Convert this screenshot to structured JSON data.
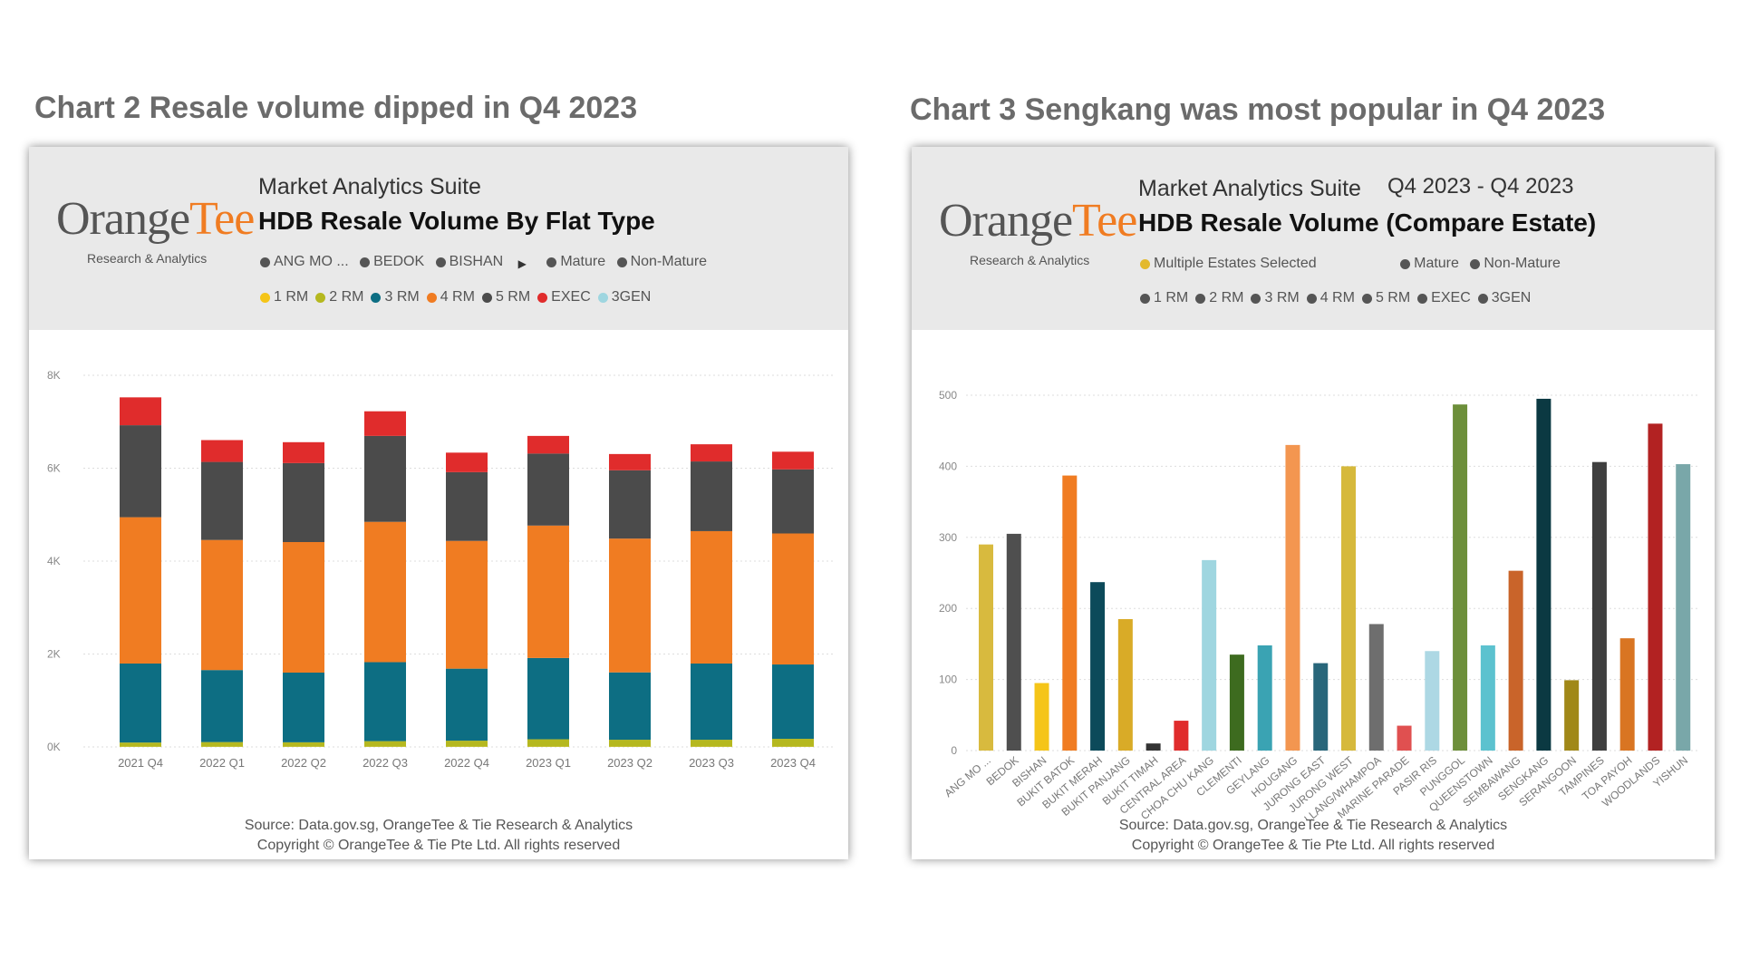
{
  "left": {
    "title": "Chart 2 Resale volume dipped in Q4 2023",
    "logo": {
      "main": "Orange",
      "accent": "Tee",
      "sub": "Research & Analytics"
    },
    "suite": "Market Analytics Suite",
    "heading": "HDB Resale Volume By Flat Type",
    "filters": [
      "ANG MO ...",
      "BEDOK",
      "BISHAN"
    ],
    "maturity": [
      "Mature",
      "Non-Mature"
    ],
    "footer": {
      "source": "Source: Data.gov.sg, OrangeTee & Tie Research & Analytics",
      "copyright": "Copyright © OrangeTee & Tie Pte Ltd. All rights reserved"
    }
  },
  "right": {
    "title": "Chart 3 Sengkang was most popular in Q4 2023",
    "logo": {
      "main": "Orange",
      "accent": "Tee",
      "sub": "Research & Analytics"
    },
    "suite": "Market Analytics Suite",
    "period": "Q4 2023 - Q4 2023",
    "heading": "HDB Resale Volume (Compare Estate)",
    "estates_selected": "Multiple Estates Selected",
    "maturity": [
      "Mature",
      "Non-Mature"
    ],
    "flat_legend": [
      "1 RM",
      "2 RM",
      "3 RM",
      "4 RM",
      "5 RM",
      "EXEC",
      "3GEN"
    ],
    "footer": {
      "source": "Source: Data.gov.sg, OrangeTee & Tie Research & Analytics",
      "copyright": "Copyright © OrangeTee & Tie Pte Ltd. All rights reserved"
    }
  },
  "colors": {
    "mature_dot": "#555555",
    "selected_dot": "#e3b92c"
  },
  "chart_data": [
    {
      "type": "bar",
      "stacked": true,
      "categories": [
        "2021 Q4",
        "2022 Q1",
        "2022 Q2",
        "2022 Q3",
        "2022 Q4",
        "2023 Q1",
        "2023 Q2",
        "2023 Q3",
        "2023 Q4"
      ],
      "series": [
        {
          "name": "1 RM",
          "color": "#f5c518",
          "values": [
            5,
            5,
            5,
            5,
            5,
            5,
            5,
            5,
            5
          ]
        },
        {
          "name": "2 RM",
          "color": "#b5b81f",
          "values": [
            90,
            100,
            95,
            120,
            130,
            160,
            150,
            150,
            170
          ]
        },
        {
          "name": "3 RM",
          "color": "#0d6e83",
          "values": [
            1700,
            1550,
            1500,
            1700,
            1550,
            1750,
            1450,
            1640,
            1600
          ]
        },
        {
          "name": "4 RM",
          "color": "#f07c22",
          "values": [
            3150,
            2800,
            2810,
            3020,
            2750,
            2850,
            2880,
            2850,
            2820
          ]
        },
        {
          "name": "5 RM",
          "color": "#4b4b4b",
          "values": [
            1980,
            1680,
            1700,
            1850,
            1480,
            1550,
            1470,
            1500,
            1380
          ]
        },
        {
          "name": "EXEC",
          "color": "#e02c2c",
          "values": [
            600,
            470,
            450,
            530,
            420,
            380,
            350,
            370,
            380
          ]
        },
        {
          "name": "3GEN",
          "color": "#9fd6e0",
          "values": [
            0,
            0,
            0,
            0,
            0,
            0,
            0,
            0,
            0
          ]
        }
      ],
      "y_ticks": [
        "0K",
        "2K",
        "4K",
        "6K",
        "8K"
      ],
      "ylim": [
        0,
        8000
      ],
      "grid": true
    },
    {
      "type": "bar",
      "categories": [
        "ANG MO ...",
        "BEDOK",
        "BISHAN",
        "BUKIT BATOK",
        "BUKIT MERAH",
        "BUKIT PANJANG",
        "BUKIT TIMAH",
        "CENTRAL AREA",
        "CHOA CHU KANG",
        "CLEMENTI",
        "GEYLANG",
        "HOUGANG",
        "JURONG EAST",
        "JURONG WEST",
        "KALLANG/WHAMPOA",
        "MARINE PARADE",
        "PASIR RIS",
        "PUNGGOL",
        "QUEENSTOWN",
        "SEMBAWANG",
        "SENGKANG",
        "SERANGOON",
        "TAMPINES",
        "TOA PAYOH",
        "WOODLANDS",
        "YISHUN"
      ],
      "values": [
        290,
        305,
        95,
        387,
        237,
        185,
        10,
        42,
        268,
        135,
        148,
        430,
        123,
        400,
        178,
        35,
        140,
        487,
        148,
        253,
        495,
        99,
        406,
        158,
        460,
        403
      ],
      "colors": [
        "#d8ba3e",
        "#4f4f4f",
        "#f5c518",
        "#f07c22",
        "#0c4a5a",
        "#d9ab27",
        "#333333",
        "#e02c2c",
        "#9fd6e0",
        "#3d6b1f",
        "#3aa3b3",
        "#f39650",
        "#28667a",
        "#d6b93c",
        "#6e6e6e",
        "#e05050",
        "#add8e4",
        "#6d8f3a",
        "#5cc2cf",
        "#c9642a",
        "#0b3942",
        "#a08818",
        "#3f3f3f",
        "#d97522",
        "#b22222",
        "#79a7a9"
      ],
      "y_ticks": [
        "0",
        "100",
        "200",
        "300",
        "400",
        "500"
      ],
      "ylim": [
        0,
        500
      ],
      "grid": true
    }
  ]
}
